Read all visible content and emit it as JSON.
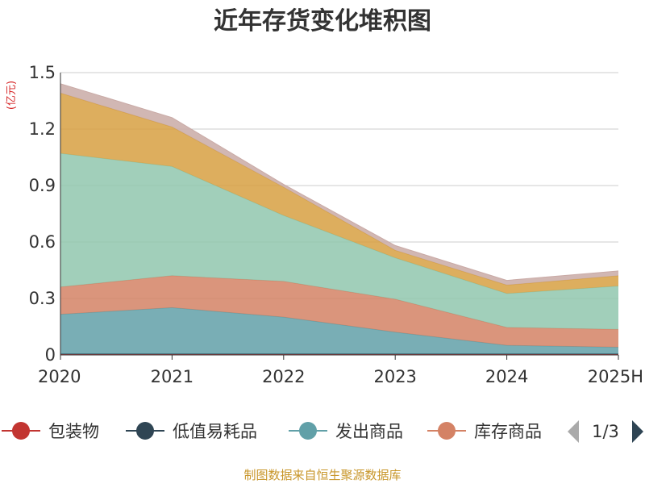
{
  "chart_data": {
    "type": "area",
    "stacked": true,
    "title": "近年存货变化堆积图",
    "unit": "(亿元)",
    "categories": [
      "2020",
      "2021",
      "2022",
      "2023",
      "2024",
      "2025H"
    ],
    "ylim": [
      0,
      1.5
    ],
    "yticks": [
      "0",
      "0.3",
      "0.6",
      "0.9",
      "1.2",
      "1.5"
    ],
    "grid": true,
    "legend_position": "bottom",
    "series": [
      {
        "name": "包装物",
        "color": "#c23531",
        "values": [
          0.005,
          0.005,
          0.005,
          0.005,
          0.005,
          0.005
        ]
      },
      {
        "name": "低值易耗品",
        "color": "#2f4554",
        "values": [
          0.001,
          0.001,
          0.001,
          0.001,
          0.001,
          0.001
        ]
      },
      {
        "name": "发出商品",
        "color": "#61a0a8",
        "values": [
          0.21,
          0.245,
          0.195,
          0.115,
          0.045,
          0.035
        ]
      },
      {
        "name": "库存商品",
        "color": "#d48265",
        "values": [
          0.145,
          0.17,
          0.19,
          0.175,
          0.095,
          0.095
        ]
      },
      {
        "name": "",
        "color": "#91c7ae",
        "values": [
          0.71,
          0.58,
          0.35,
          0.22,
          0.18,
          0.23
        ]
      },
      {
        "name": "",
        "color": "#d7a042",
        "values": [
          0.32,
          0.21,
          0.15,
          0.04,
          0.045,
          0.055
        ]
      },
      {
        "name": "",
        "color": "#c9aaa6",
        "values": [
          0.05,
          0.05,
          0.015,
          0.025,
          0.025,
          0.025
        ]
      }
    ]
  },
  "legend": {
    "page": "1/3",
    "items": [
      "包装物",
      "低值易耗品",
      "发出商品",
      "库存商品"
    ]
  },
  "source_text": "制图数据来自恒生聚源数据库"
}
